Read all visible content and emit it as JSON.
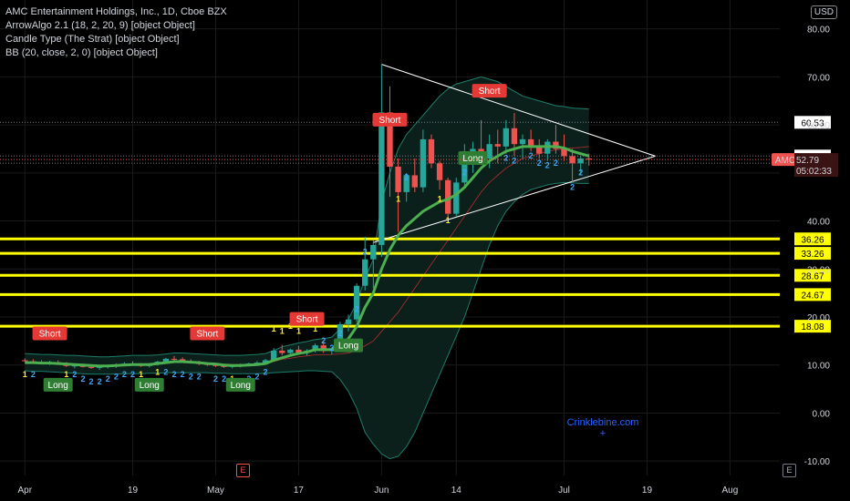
{
  "header": {
    "title": "AMC Entertainment Holdings, Inc., 1D, Cboe BZX",
    "indicators": [
      "ArrowAlgo 2.1 (18, 2, 20, 9) [object Object]",
      "Candle Type (The Strat) [object Object]",
      "BB (20, close, 2, 0) [object Object]"
    ],
    "currency_button": "USD"
  },
  "chart_data": {
    "type": "candlestick",
    "symbol": "AMC",
    "timeframe": "1D",
    "ylim": [
      -13,
      86
    ],
    "y_ticks": [
      80,
      70,
      60,
      50,
      40,
      30,
      20,
      10,
      0,
      -10
    ],
    "y_tick_labels": [
      "80.00",
      "70.00",
      "60.00",
      "50.00",
      "40.00",
      "30.00",
      "20.00",
      "10.00",
      "0.00",
      "-10.00"
    ],
    "x_tick_labels": [
      {
        "label": "Apr",
        "bar": 0
      },
      {
        "label": "19",
        "bar": 13
      },
      {
        "label": "May",
        "bar": 23
      },
      {
        "label": "17",
        "bar": 33
      },
      {
        "label": "Jun",
        "bar": 43
      },
      {
        "label": "14",
        "bar": 52
      },
      {
        "label": "Jul",
        "bar": 65
      },
      {
        "label": "19",
        "bar": 75
      },
      {
        "label": "Aug",
        "bar": 85
      }
    ],
    "bar_start": -3,
    "bar_end": 91,
    "candles": [
      [
        11.0,
        11.4,
        10.6,
        10.8
      ],
      [
        10.8,
        11.2,
        10.4,
        10.6
      ],
      [
        10.6,
        11.0,
        10.2,
        10.4
      ],
      [
        10.4,
        10.9,
        10.0,
        10.6
      ],
      [
        10.6,
        11.0,
        10.1,
        10.2
      ],
      [
        10.2,
        10.6,
        9.6,
        9.8
      ],
      [
        9.8,
        10.2,
        9.3,
        9.9
      ],
      [
        9.9,
        10.3,
        9.5,
        9.6
      ],
      [
        9.6,
        10.0,
        9.2,
        9.4
      ],
      [
        9.4,
        9.9,
        9.0,
        9.6
      ],
      [
        9.6,
        10.1,
        9.3,
        9.8
      ],
      [
        9.8,
        10.3,
        9.4,
        10.1
      ],
      [
        10.1,
        10.6,
        9.8,
        10.3
      ],
      [
        10.3,
        10.8,
        9.9,
        10.0
      ],
      [
        10.0,
        10.4,
        9.6,
        9.8
      ],
      [
        9.8,
        10.4,
        9.5,
        10.2
      ],
      [
        10.2,
        10.9,
        9.9,
        10.7
      ],
      [
        10.7,
        11.5,
        10.4,
        11.3
      ],
      [
        11.3,
        11.9,
        10.8,
        11.2
      ],
      [
        11.2,
        11.6,
        10.6,
        10.8
      ],
      [
        10.8,
        11.2,
        10.3,
        10.5
      ],
      [
        10.5,
        10.9,
        10.0,
        10.2
      ],
      [
        10.2,
        10.6,
        9.8,
        10.0
      ],
      [
        10.0,
        10.4,
        9.6,
        9.8
      ],
      [
        9.8,
        10.2,
        9.4,
        9.6
      ],
      [
        9.6,
        10.1,
        9.3,
        9.9
      ],
      [
        9.9,
        10.3,
        9.5,
        10.0
      ],
      [
        10.0,
        10.5,
        9.7,
        10.3
      ],
      [
        10.3,
        10.8,
        10.0,
        10.5
      ],
      [
        10.5,
        11.3,
        10.2,
        11.0
      ],
      [
        11.0,
        13.5,
        10.8,
        13.0
      ],
      [
        13.0,
        14.2,
        12.0,
        12.5
      ],
      [
        12.5,
        13.4,
        11.9,
        13.2
      ],
      [
        13.2,
        14.0,
        12.3,
        12.6
      ],
      [
        12.6,
        13.3,
        12.0,
        13.0
      ],
      [
        13.0,
        14.5,
        12.6,
        14.1
      ],
      [
        14.1,
        15.0,
        12.5,
        12.9
      ],
      [
        12.9,
        13.7,
        12.2,
        13.5
      ],
      [
        13.5,
        19.0,
        13.0,
        18.5
      ],
      [
        18.5,
        20.5,
        17.0,
        19.5
      ],
      [
        19.5,
        27.0,
        19.0,
        26.5
      ],
      [
        26.5,
        36.7,
        25.5,
        32.0
      ],
      [
        32.0,
        36.0,
        26.0,
        35.0
      ],
      [
        35.0,
        72.6,
        32.5,
        62.6
      ],
      [
        62.6,
        68.0,
        45.0,
        51.3
      ],
      [
        51.3,
        53.0,
        37.7,
        46.0
      ],
      [
        46.0,
        50.0,
        44.0,
        49.5
      ],
      [
        49.5,
        53.0,
        46.0,
        47.0
      ],
      [
        47.0,
        59.0,
        46.0,
        57.0
      ],
      [
        57.0,
        58.0,
        51.0,
        52.0
      ],
      [
        52.0,
        52.5,
        46.5,
        48.5
      ],
      [
        48.5,
        49.0,
        40.0,
        41.5
      ],
      [
        41.5,
        49.0,
        41.0,
        48.0
      ],
      [
        48.0,
        56.0,
        47.0,
        53.5
      ],
      [
        53.5,
        56.5,
        50.0,
        55.0
      ],
      [
        55.0,
        61.0,
        52.0,
        53.0
      ],
      [
        53.0,
        58.0,
        51.0,
        56.0
      ],
      [
        56.0,
        59.0,
        52.0,
        55.5
      ],
      [
        55.5,
        61.0,
        54.0,
        59.3
      ],
      [
        59.3,
        62.5,
        53.5,
        56.0
      ],
      [
        56.0,
        58.0,
        53.0,
        57.0
      ],
      [
        57.0,
        59.0,
        54.5,
        55.5
      ],
      [
        55.5,
        57.0,
        53.0,
        54.0
      ],
      [
        54.0,
        57.0,
        52.5,
        56.5
      ],
      [
        56.5,
        60.0,
        54.0,
        55.0
      ],
      [
        55.0,
        58.0,
        52.5,
        53.5
      ],
      [
        53.5,
        55.0,
        48.0,
        52.0
      ],
      [
        52.0,
        53.5,
        49.5,
        53.0
      ],
      [
        53.0,
        54.0,
        51.5,
        52.79
      ]
    ],
    "bb_upper": [
      12.4,
      12.3,
      12.2,
      12.2,
      12.1,
      12.0,
      12.0,
      11.9,
      11.8,
      11.7,
      11.7,
      11.8,
      11.9,
      12.0,
      12.0,
      12.0,
      12.1,
      12.3,
      12.5,
      12.5,
      12.4,
      12.3,
      12.2,
      12.1,
      12.0,
      12.0,
      12.0,
      12.1,
      12.2,
      12.4,
      13.0,
      13.8,
      14.2,
      14.6,
      14.9,
      15.3,
      15.5,
      15.8,
      17.5,
      19.5,
      23.0,
      28.0,
      32.0,
      44.0,
      50.0,
      55.0,
      58.0,
      60.0,
      62.0,
      64.0,
      66.0,
      67.5,
      68.5,
      69.0,
      69.5,
      70.0,
      69.5,
      69.0,
      68.0,
      67.0,
      66.0,
      65.5,
      65.0,
      64.5,
      64.0,
      63.8,
      63.5,
      63.4,
      63.3
    ],
    "bb_lower": [
      8.8,
      8.7,
      8.7,
      8.6,
      8.5,
      8.4,
      8.3,
      8.2,
      8.1,
      8.1,
      8.1,
      8.1,
      8.2,
      8.2,
      8.2,
      8.3,
      8.3,
      8.4,
      8.4,
      8.4,
      8.4,
      8.4,
      8.4,
      8.3,
      8.3,
      8.2,
      8.2,
      8.2,
      8.2,
      8.3,
      8.4,
      8.5,
      8.6,
      8.7,
      8.8,
      8.8,
      8.7,
      8.6,
      7.0,
      4.5,
      1.0,
      -4.0,
      -6.5,
      -8.5,
      -9.5,
      -9.0,
      -7.0,
      -4.0,
      0.0,
      4.0,
      8.0,
      12.0,
      16.0,
      20.0,
      25.0,
      30.0,
      35.0,
      39.0,
      42.0,
      44.0,
      45.5,
      46.5,
      47.0,
      47.5,
      47.8,
      48.0,
      47.9,
      47.8,
      47.8
    ],
    "bb_basis": [
      10.6,
      10.5,
      10.5,
      10.4,
      10.3,
      10.2,
      10.2,
      10.1,
      10.0,
      9.9,
      9.9,
      10.0,
      10.0,
      10.1,
      10.1,
      10.2,
      10.2,
      10.4,
      10.5,
      10.5,
      10.4,
      10.4,
      10.3,
      10.2,
      10.2,
      10.1,
      10.1,
      10.2,
      10.2,
      10.4,
      10.7,
      11.2,
      11.4,
      11.7,
      11.9,
      12.1,
      12.1,
      12.2,
      12.3,
      12.5,
      13.0,
      14.0,
      15.0,
      17.0,
      19.0,
      21.0,
      23.5,
      26.0,
      28.5,
      31.0,
      33.5,
      36.0,
      38.5,
      41.0,
      43.5,
      46.0,
      48.0,
      49.5,
      51.0,
      52.0,
      53.0,
      53.5,
      54.0,
      54.5,
      54.8,
      55.0,
      55.2,
      55.3,
      55.5
    ],
    "trend_line": [
      10.5,
      10.5,
      10.4,
      10.4,
      10.3,
      10.2,
      10.1,
      10.0,
      9.9,
      9.8,
      9.8,
      9.9,
      10.0,
      10.1,
      10.1,
      10.1,
      10.3,
      10.5,
      10.7,
      10.7,
      10.6,
      10.5,
      10.3,
      10.2,
      10.0,
      9.9,
      9.9,
      10.0,
      10.1,
      10.3,
      11.0,
      11.5,
      12.0,
      12.4,
      12.7,
      13.2,
      13.2,
      13.2,
      14.0,
      15.5,
      18.0,
      22.0,
      25.0,
      30.0,
      34.0,
      37.0,
      39.0,
      40.5,
      42.0,
      43.0,
      44.0,
      44.5,
      45.5,
      47.0,
      49.0,
      51.0,
      52.5,
      53.5,
      54.5,
      55.0,
      55.5,
      55.5,
      55.5,
      55.5,
      55.5,
      55.2,
      54.5,
      54.0,
      53.5
    ],
    "signals": [
      {
        "label": "Short",
        "type": "short",
        "bar": 3,
        "value": 16.5
      },
      {
        "label": "Long",
        "type": "long",
        "bar": 4,
        "value": 5.8
      },
      {
        "label": "Long",
        "type": "long",
        "bar": 15,
        "value": 5.8
      },
      {
        "label": "Short",
        "type": "short",
        "bar": 22,
        "value": 16.5
      },
      {
        "label": "Long",
        "type": "long",
        "bar": 26,
        "value": 5.8
      },
      {
        "label": "Short",
        "type": "short",
        "bar": 34,
        "value": 19.5
      },
      {
        "label": "Long",
        "type": "long",
        "bar": 39,
        "value": 14.0
      },
      {
        "label": "Short",
        "type": "short",
        "bar": 44,
        "value": 61.0
      },
      {
        "label": "Long",
        "type": "long",
        "bar": 54,
        "value": 53.0
      },
      {
        "label": "Short",
        "type": "short",
        "bar": 56,
        "value": 67.0
      }
    ],
    "strat_counts": [
      {
        "label": "1",
        "bar": 0,
        "value": 7.5,
        "type": "inside"
      },
      {
        "label": "2",
        "bar": 1,
        "value": 7.5,
        "type": "directional"
      },
      {
        "label": "1",
        "bar": 5,
        "value": 7.5,
        "type": "inside"
      },
      {
        "label": "2",
        "bar": 6,
        "value": 7.5,
        "type": "directional"
      },
      {
        "label": "2",
        "bar": 7,
        "value": 6.5,
        "type": "directional"
      },
      {
        "label": "2",
        "bar": 8,
        "value": 6.0,
        "type": "directional"
      },
      {
        "label": "2",
        "bar": 9,
        "value": 6.0,
        "type": "directional"
      },
      {
        "label": "2",
        "bar": 10,
        "value": 6.5,
        "type": "directional"
      },
      {
        "label": "2",
        "bar": 11,
        "value": 7.0,
        "type": "directional"
      },
      {
        "label": "2",
        "bar": 12,
        "value": 7.5,
        "type": "directional"
      },
      {
        "label": "2",
        "bar": 13,
        "value": 7.5,
        "type": "directional"
      },
      {
        "label": "1",
        "bar": 14,
        "value": 7.5,
        "type": "inside"
      },
      {
        "label": "1",
        "bar": 16,
        "value": 8.0,
        "type": "inside"
      },
      {
        "label": "2",
        "bar": 17,
        "value": 8.0,
        "type": "directional"
      },
      {
        "label": "2",
        "bar": 18,
        "value": 7.5,
        "type": "directional"
      },
      {
        "label": "2",
        "bar": 19,
        "value": 7.5,
        "type": "directional"
      },
      {
        "label": "2",
        "bar": 20,
        "value": 7.0,
        "type": "directional"
      },
      {
        "label": "2",
        "bar": 21,
        "value": 7.0,
        "type": "directional"
      },
      {
        "label": "2",
        "bar": 23,
        "value": 6.5,
        "type": "directional"
      },
      {
        "label": "2",
        "bar": 24,
        "value": 6.5,
        "type": "directional"
      },
      {
        "label": "1",
        "bar": 25,
        "value": 6.5,
        "type": "inside"
      },
      {
        "label": "2",
        "bar": 27,
        "value": 6.5,
        "type": "directional"
      },
      {
        "label": "2",
        "bar": 28,
        "value": 7.0,
        "type": "directional"
      },
      {
        "label": "2",
        "bar": 29,
        "value": 8.0,
        "type": "directional"
      },
      {
        "label": "1",
        "bar": 30,
        "value": 17.0,
        "type": "inside"
      },
      {
        "label": "1",
        "bar": 31,
        "value": 16.5,
        "type": "inside"
      },
      {
        "label": "1",
        "bar": 32,
        "value": 17.5,
        "type": "inside"
      },
      {
        "label": "1",
        "bar": 33,
        "value": 16.5,
        "type": "inside"
      },
      {
        "label": "1",
        "bar": 35,
        "value": 17.0,
        "type": "inside"
      },
      {
        "label": "2",
        "bar": 36,
        "value": 14.5,
        "type": "directional"
      },
      {
        "label": "2",
        "bar": 37,
        "value": 13.0,
        "type": "directional"
      },
      {
        "label": "2",
        "bar": 38,
        "value": 16.0,
        "type": "directional"
      },
      {
        "label": "2",
        "bar": 40,
        "value": 21.0,
        "type": "directional"
      },
      {
        "label": "2",
        "bar": 41,
        "value": 33.0,
        "type": "directional"
      },
      {
        "label": "1",
        "bar": 45,
        "value": 44.0,
        "type": "inside"
      },
      {
        "label": "2",
        "bar": 46,
        "value": 48.5,
        "type": "directional"
      },
      {
        "label": "1",
        "bar": 50,
        "value": 44.0,
        "type": "inside"
      },
      {
        "label": "1",
        "bar": 51,
        "value": 39.5,
        "type": "inside"
      },
      {
        "label": "2",
        "bar": 53,
        "value": 49.5,
        "type": "directional"
      },
      {
        "label": "2",
        "bar": 58,
        "value": 52.5,
        "type": "directional"
      },
      {
        "label": "2",
        "bar": 59,
        "value": 52.0,
        "type": "directional"
      },
      {
        "label": "2",
        "bar": 61,
        "value": 53.0,
        "type": "directional"
      },
      {
        "label": "2",
        "bar": 62,
        "value": 51.5,
        "type": "directional"
      },
      {
        "label": "2",
        "bar": 63,
        "value": 51.0,
        "type": "directional"
      },
      {
        "label": "2",
        "bar": 64,
        "value": 51.5,
        "type": "directional"
      },
      {
        "label": "2",
        "bar": 66,
        "value": 46.5,
        "type": "directional"
      },
      {
        "label": "2",
        "bar": 67,
        "value": 49.5,
        "type": "directional"
      }
    ],
    "triangle": {
      "upper": {
        "from": {
          "bar": 43,
          "value": 72.6
        },
        "to": {
          "bar": 76,
          "value": 53.5
        }
      },
      "lower": {
        "from": {
          "bar": 42,
          "value": 35.5
        },
        "to": {
          "bar": 76,
          "value": 53.5
        }
      }
    },
    "horizontal_levels": [
      {
        "label": "60.53",
        "value": 60.53,
        "style": "dotted",
        "color": "#787b86"
      },
      {
        "label": "53.51",
        "value": 53.51,
        "style": "dotted",
        "color": "#787b86"
      },
      {
        "label": "52.02",
        "value": 52.02,
        "style": "dotted",
        "color": "#787b86"
      },
      {
        "label": "36.26",
        "value": 36.26,
        "style": "solid",
        "color": "#ffff00"
      },
      {
        "label": "33.26",
        "value": 33.26,
        "style": "solid",
        "color": "#ffff00"
      },
      {
        "label": "28.67",
        "value": 28.67,
        "style": "solid",
        "color": "#ffff00"
      },
      {
        "label": "24.67",
        "value": 24.67,
        "style": "solid",
        "color": "#ffff00"
      },
      {
        "label": "18.08",
        "value": 18.08,
        "style": "solid",
        "color": "#ffff00"
      }
    ],
    "price_label": {
      "symbol": "AMC",
      "value": 52.79,
      "label": "52.79",
      "countdown": "05:02:33"
    },
    "watermark": "Crinklebine.com",
    "colors": {
      "up": "#26a69a",
      "down": "#ef5350",
      "bb": "#1e7d6a",
      "bb_fill": "#0b1f1b",
      "trend": "#4caf50",
      "basis": "#b22f2f",
      "long": "#2e7d32",
      "short": "#e53935",
      "level": "#ffff00",
      "inside": "#ffeb3b",
      "directional": "#42a5f5",
      "price": "#ef5350"
    }
  }
}
